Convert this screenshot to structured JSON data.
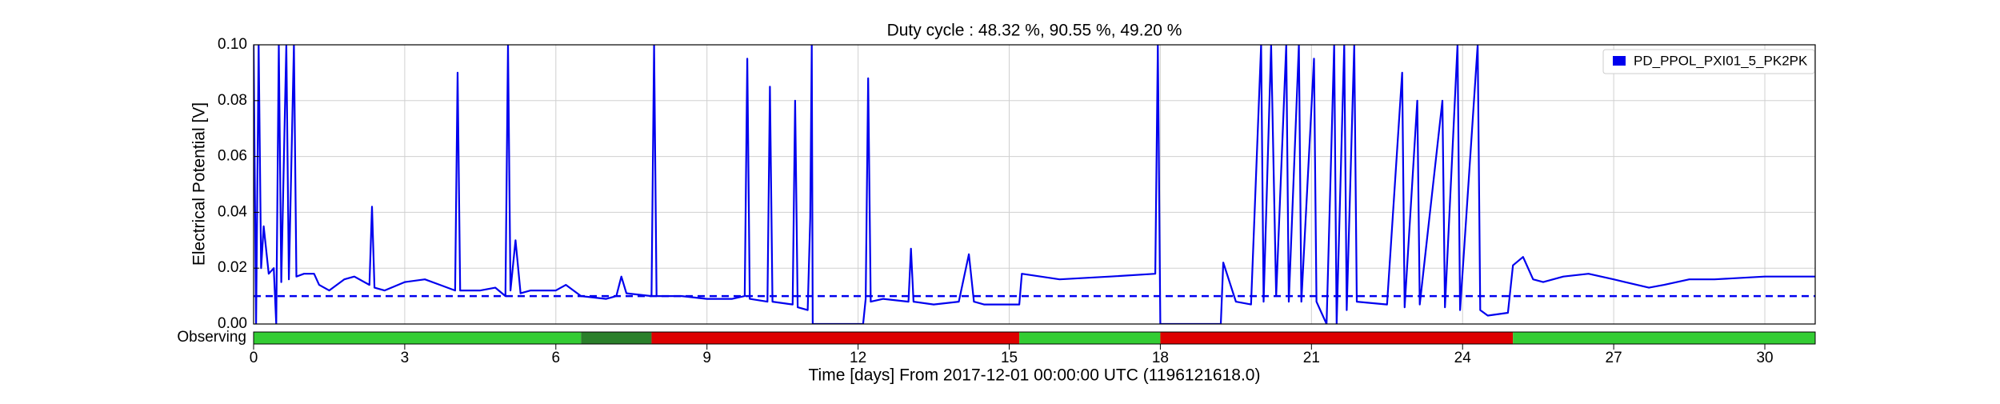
{
  "chart_data": {
    "type": "line",
    "title": "Duty cycle : 48.32 %, 90.55 %, 49.20 %",
    "xlabel": "Time [days] From 2017-12-01 00:00:00 UTC (1196121618.0)",
    "ylabel": "Electrical Potential [V]",
    "xlim": [
      0,
      31
    ],
    "ylim": [
      0,
      0.1
    ],
    "xticks": [
      0,
      3,
      6,
      9,
      12,
      15,
      18,
      21,
      24,
      27,
      30
    ],
    "yticks": [
      {
        "value": 0,
        "label": "0.00"
      },
      {
        "value": 0.02,
        "label": "0.02"
      },
      {
        "value": 0.04,
        "label": "0.04"
      },
      {
        "value": 0.06,
        "label": "0.06"
      },
      {
        "value": 0.08,
        "label": "0.08"
      },
      {
        "value": 0.1,
        "label": "0.10"
      }
    ],
    "grid": true,
    "legend": "upper right",
    "threshold": 0.01,
    "threshold_color": "#0000ee",
    "series": [
      {
        "name": "PD_PPOL_PXI01_5_PK2PK",
        "color": "#0000ee",
        "x": [
          0,
          0.05,
          0.1,
          0.15,
          0.2,
          0.3,
          0.4,
          0.45,
          0.5,
          0.55,
          0.65,
          0.7,
          0.8,
          0.85,
          1.0,
          1.2,
          1.3,
          1.5,
          1.8,
          2.0,
          2.3,
          2.35,
          2.4,
          2.6,
          3.0,
          3.4,
          3.7,
          4.0,
          4.05,
          4.1,
          4.5,
          4.8,
          5.0,
          5.05,
          5.1,
          5.2,
          5.3,
          5.5,
          6.0,
          6.2,
          6.5,
          7.0,
          7.2,
          7.3,
          7.4,
          7.9,
          7.95,
          8.0,
          8.5,
          9.0,
          9.5,
          9.75,
          9.8,
          9.85,
          10.2,
          10.25,
          10.3,
          10.7,
          10.75,
          10.8,
          11.0,
          11.05,
          11.08,
          11.1,
          12.1,
          12.15,
          12.2,
          12.25,
          12.5,
          13.0,
          13.05,
          13.1,
          13.5,
          14.0,
          14.2,
          14.3,
          14.5,
          15.2,
          15.25,
          16.0,
          17.0,
          17.9,
          17.95,
          18.0,
          19.2,
          19.25,
          19.5,
          19.8,
          20.0,
          20.05,
          20.2,
          20.3,
          20.5,
          20.55,
          20.75,
          20.8,
          21.05,
          21.1,
          21.3,
          21.45,
          21.5,
          21.65,
          21.7,
          21.85,
          21.9,
          22.5,
          22.8,
          22.85,
          23.1,
          23.15,
          23.6,
          23.65,
          23.9,
          23.95,
          24.3,
          24.35,
          24.5,
          24.9,
          25.0,
          25.2,
          25.4,
          25.6,
          26.0,
          26.5,
          27.0,
          27.7,
          28.0,
          28.5,
          29.0,
          30.0,
          31.0
        ],
        "values": [
          0.1,
          0.0,
          0.1,
          0.02,
          0.035,
          0.018,
          0.02,
          0.0,
          0.1,
          0.015,
          0.1,
          0.016,
          0.1,
          0.017,
          0.018,
          0.018,
          0.014,
          0.012,
          0.016,
          0.017,
          0.014,
          0.042,
          0.013,
          0.012,
          0.015,
          0.016,
          0.014,
          0.012,
          0.09,
          0.012,
          0.012,
          0.013,
          0.01,
          0.1,
          0.012,
          0.03,
          0.011,
          0.012,
          0.012,
          0.014,
          0.01,
          0.009,
          0.01,
          0.017,
          0.011,
          0.01,
          0.1,
          0.01,
          0.01,
          0.009,
          0.009,
          0.01,
          0.095,
          0.009,
          0.008,
          0.085,
          0.008,
          0.007,
          0.08,
          0.006,
          0.005,
          0.038,
          0.1,
          0.0,
          0.0,
          0.009,
          0.088,
          0.008,
          0.009,
          0.008,
          0.027,
          0.008,
          0.007,
          0.008,
          0.025,
          0.008,
          0.007,
          0.007,
          0.018,
          0.016,
          0.017,
          0.018,
          0.1,
          0.0,
          0.0,
          0.022,
          0.008,
          0.007,
          0.1,
          0.008,
          0.1,
          0.01,
          0.1,
          0.008,
          0.1,
          0.008,
          0.095,
          0.008,
          0.0,
          0.1,
          0.0,
          0.1,
          0.005,
          0.1,
          0.008,
          0.007,
          0.09,
          0.006,
          0.08,
          0.007,
          0.08,
          0.006,
          0.1,
          0.005,
          0.1,
          0.005,
          0.003,
          0.004,
          0.021,
          0.024,
          0.016,
          0.015,
          0.017,
          0.018,
          0.016,
          0.013,
          0.014,
          0.016,
          0.016,
          0.017,
          0.017
        ]
      }
    ],
    "state_label": "Observing",
    "state_segments": [
      {
        "start": 0,
        "end": 6.5,
        "color": "#33cc33"
      },
      {
        "start": 6.5,
        "end": 7.9,
        "color": "#2a7f2a"
      },
      {
        "start": 7.9,
        "end": 15.2,
        "color": "#dd0000"
      },
      {
        "start": 15.2,
        "end": 18.0,
        "color": "#33cc33"
      },
      {
        "start": 18.0,
        "end": 25.0,
        "color": "#dd0000"
      },
      {
        "start": 25.0,
        "end": 31.0,
        "color": "#33cc33"
      }
    ]
  }
}
